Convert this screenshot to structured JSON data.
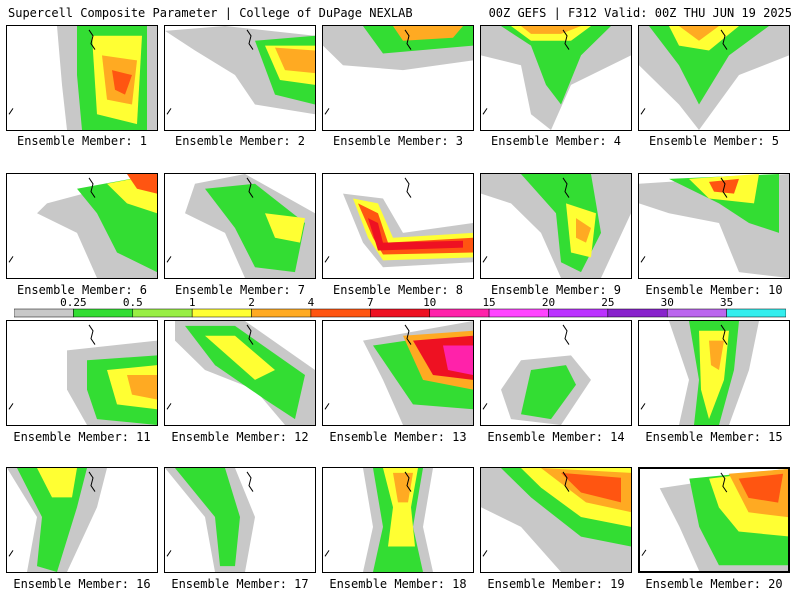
{
  "header": {
    "title": "Supercell Composite Parameter | College of DuPage NEXLAB",
    "run_info": "00Z GEFS | F312 Valid: 00Z THU JUN 19 2025"
  },
  "caption_prefix": "Ensemble Member: ",
  "members": [
    {
      "number": "1"
    },
    {
      "number": "2"
    },
    {
      "number": "3"
    },
    {
      "number": "4"
    },
    {
      "number": "5"
    },
    {
      "number": "6"
    },
    {
      "number": "7"
    },
    {
      "number": "8"
    },
    {
      "number": "9"
    },
    {
      "number": "10"
    },
    {
      "number": "11"
    },
    {
      "number": "12"
    },
    {
      "number": "13"
    },
    {
      "number": "14"
    },
    {
      "number": "15"
    },
    {
      "number": "16"
    },
    {
      "number": "17"
    },
    {
      "number": "18"
    },
    {
      "number": "19"
    },
    {
      "number": "20"
    }
  ],
  "selected_member": "20",
  "colorbar": {
    "labels": [
      "0.25",
      "0.5",
      "1",
      "2",
      "4",
      "7",
      "10",
      "15",
      "20",
      "25",
      "30",
      "35"
    ],
    "colors": [
      "#c8c8c8",
      "#33dd33",
      "#99ee44",
      "#ffff33",
      "#ffaa22",
      "#ff5511",
      "#ee1122",
      "#ff22aa",
      "#ff44ff",
      "#bb33ff",
      "#8822cc",
      "#bb66ee",
      "#33eeee"
    ]
  }
}
